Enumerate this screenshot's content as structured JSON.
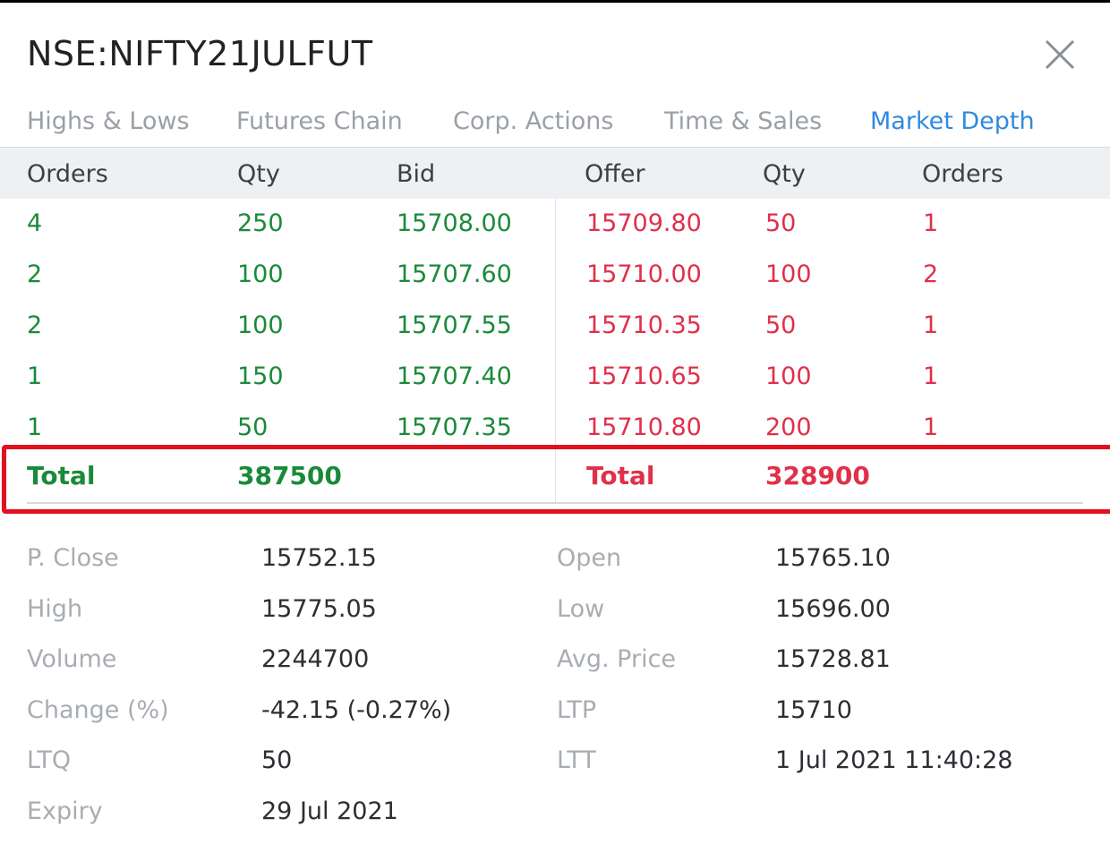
{
  "header": {
    "title": "NSE:NIFTY21JULFUT"
  },
  "tabs": [
    {
      "label": "Highs & Lows"
    },
    {
      "label": "Futures Chain"
    },
    {
      "label": "Corp. Actions"
    },
    {
      "label": "Time & Sales"
    },
    {
      "label": "Market Depth"
    }
  ],
  "active_tab": "Market Depth",
  "depth": {
    "columns": [
      "Orders",
      "Qty",
      "Bid",
      "Offer",
      "Qty",
      "Orders"
    ],
    "rows": [
      {
        "bid_orders": "4",
        "bid_qty": "250",
        "bid": "15708.00",
        "offer": "15709.80",
        "offer_qty": "50",
        "offer_orders": "1"
      },
      {
        "bid_orders": "2",
        "bid_qty": "100",
        "bid": "15707.60",
        "offer": "15710.00",
        "offer_qty": "100",
        "offer_orders": "2"
      },
      {
        "bid_orders": "2",
        "bid_qty": "100",
        "bid": "15707.55",
        "offer": "15710.35",
        "offer_qty": "50",
        "offer_orders": "1"
      },
      {
        "bid_orders": "1",
        "bid_qty": "150",
        "bid": "15707.40",
        "offer": "15710.65",
        "offer_qty": "100",
        "offer_orders": "1"
      },
      {
        "bid_orders": "1",
        "bid_qty": "50",
        "bid": "15707.35",
        "offer": "15710.80",
        "offer_qty": "200",
        "offer_orders": "1"
      }
    ],
    "totals": {
      "bid_label": "Total",
      "bid_total": "387500",
      "offer_label": "Total",
      "offer_total": "328900"
    }
  },
  "stats": [
    {
      "label": "P. Close",
      "value": "15752.15",
      "label2": "Open",
      "value2": "15765.10"
    },
    {
      "label": "High",
      "value": "15775.05",
      "label2": "Low",
      "value2": "15696.00"
    },
    {
      "label": "Volume",
      "value": "2244700",
      "label2": "Avg. Price",
      "value2": "15728.81"
    },
    {
      "label": "Change (%)",
      "value": "-42.15 (-0.27%)",
      "label2": "LTP",
      "value2": "15710"
    },
    {
      "label": "LTQ",
      "value": "50",
      "label2": "LTT",
      "value2": "1 Jul 2021 11:40:28"
    },
    {
      "label": "Expiry",
      "value": "29 Jul 2021",
      "label2": "",
      "value2": ""
    }
  ],
  "colors": {
    "bid": "#1a8a3a",
    "offer": "#e0304a",
    "active_tab": "#2f8ae0",
    "highlight_border": "#e3101e"
  },
  "icons": {
    "close": "close-icon"
  }
}
